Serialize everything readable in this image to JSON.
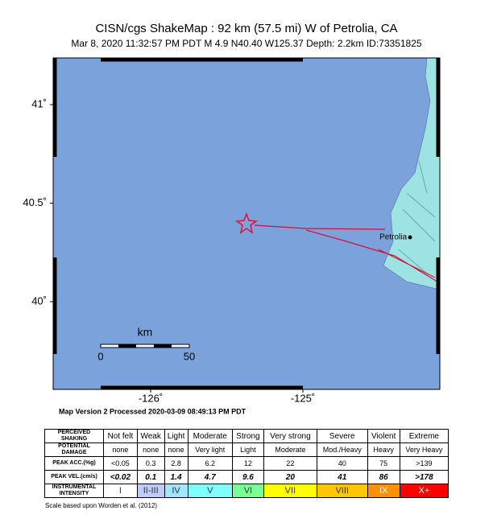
{
  "header": {
    "title": "CISN/cgs ShakeMap : 92 km (57.5 mi) W of Petrolia, CA",
    "subtitle": "Mar  8, 2020 11:32:57 PM PDT   M 4.9   N40.40 W125.37   Depth: 2.2km   ID:73351825"
  },
  "map": {
    "lat_ticks": [
      {
        "value": 41,
        "label": "41˚"
      },
      {
        "value": 40.5,
        "label": "40.5˚"
      },
      {
        "value": 40,
        "label": "40˚"
      }
    ],
    "lon_ticks": [
      {
        "value": -126,
        "label": "-126˚"
      },
      {
        "value": -125,
        "label": "-125˚"
      }
    ],
    "place": "Petrolia",
    "scale_bar": {
      "unit": "km",
      "start": "0",
      "end": "50"
    },
    "version": "Map Version 2 Processed 2020-03-09 08:49:13 PM PDT"
  },
  "legend": {
    "rows": [
      {
        "label": "PERCEIVED SHAKING",
        "cells": [
          "Not felt",
          "Weak",
          "Light",
          "Moderate",
          "Strong",
          "Very strong",
          "Severe",
          "Violent",
          "Extreme"
        ]
      },
      {
        "label": "POTENTIAL DAMAGE",
        "cells": [
          "none",
          "none",
          "none",
          "Very light",
          "Light",
          "Moderate",
          "Mod./Heavy",
          "Heavy",
          "Very Heavy"
        ]
      },
      {
        "label": "PEAK ACC.(%g)",
        "cells": [
          "<0.05",
          "0.3",
          "2.8",
          "6.2",
          "12",
          "22",
          "40",
          "75",
          ">139"
        ]
      },
      {
        "label": "PEAK VEL.(cm/s)",
        "cells": [
          "<0.02",
          "0.1",
          "1.4",
          "4.7",
          "9.6",
          "20",
          "41",
          "86",
          ">178"
        ]
      },
      {
        "label": "INSTRUMENTAL INTENSITY",
        "cells": [
          "I",
          "II-III",
          "IV",
          "V",
          "VI",
          "VII",
          "VIII",
          "IX",
          "X+"
        ]
      }
    ],
    "intensity_colors": [
      "#ffffff",
      "#bfccff",
      "#a0e6ff",
      "#80ffff",
      "#7aff93",
      "#ffff00",
      "#ffc800",
      "#ff9100",
      "#ff0000"
    ],
    "footnote": "Scale based upon Worden et al. (2012)"
  }
}
